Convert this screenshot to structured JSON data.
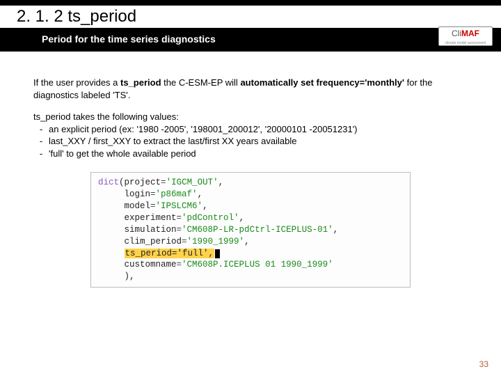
{
  "header": {
    "section_number": "2. 1. 2 ts_period",
    "subtitle": "Period for the time series diagnostics",
    "logo_main": "CliMAF",
    "logo_sub": "climate model assessment"
  },
  "body": {
    "p1_a": "If the user provides a ",
    "p1_b": "ts_period",
    "p1_c": " the C-ESM-EP will ",
    "p1_d": "automatically set frequency='monthly'",
    "p1_e": " for the diagnostics labeled 'TS'.",
    "p2_intro": "ts_period takes the following values:",
    "bullets": [
      "an explicit period (ex: '1980 -2005', '198001_200012', '20000101 -20051231')",
      "last_XXY / first_XXY to extract the last/first XX years available",
      "'full' to get the whole available period"
    ]
  },
  "code": {
    "dict": "dict",
    "lparen": "(",
    "k_project": "project",
    "v_project": "'IGCM_OUT'",
    "k_login": "login",
    "v_login": "'p86maf'",
    "k_model": "model",
    "v_model": "'IPSLCM6'",
    "k_experiment": "experiment",
    "v_experiment": "'pdControl'",
    "k_simulation": "simulation",
    "v_simulation": "'CM608P-LR-pdCtrl-ICEPLUS-01'",
    "k_clim": "clim_period",
    "v_clim": "'1990_1999'",
    "k_ts": "ts_period=",
    "v_ts": "'full'",
    "k_custom": "customname",
    "v_custom": "'CM608P.ICEPLUS 01 1990_1999'",
    "rparen": "),",
    "eq": "=",
    "comma": ","
  },
  "page_number": "33"
}
